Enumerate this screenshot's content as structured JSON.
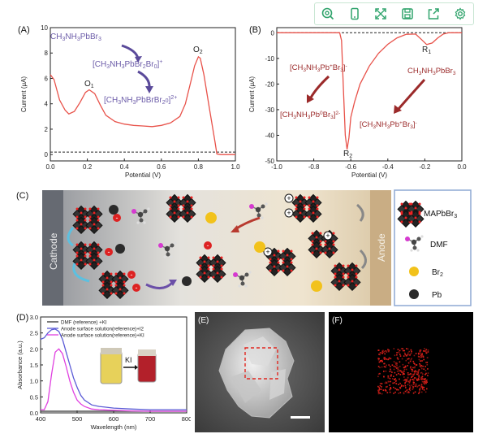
{
  "toolbar": {
    "icons": [
      "search-zoom-icon",
      "phone-icon",
      "expand-icon",
      "save-icon",
      "share-icon",
      "gear-icon"
    ],
    "accent": "#2fa36b"
  },
  "panels": {
    "a_label": "(A)",
    "b_label": "(B)",
    "c_label": "(C)",
    "d_label": "(D)",
    "e_label": "(E)",
    "f_label": "(F)"
  },
  "panelA": {
    "annot1": "CH3NH3PbBr3",
    "annot2": "[CH3NH3PbBr2Br0]+",
    "annot3": "[CH3NH3PbBrBr20]2+",
    "peak1": "O1",
    "peak2": "O2"
  },
  "panelB": {
    "annot1": "[CH3NH3Pb+Br3]-",
    "annot2": "[CH3NH3Pb0Br3]2-",
    "annot3": "CH3NH3PbBr3",
    "annot4": "[CH3NH3Pb+Br3]-",
    "peak1": "R1",
    "peak2": "R2"
  },
  "panelC": {
    "cathode": "Cathode",
    "anode": "Anode",
    "legend": [
      "MAPbBr3",
      "DMF",
      "Br2",
      "Pb"
    ]
  },
  "panelD": {
    "legend": [
      "DMF (reference) +KI",
      "Anode surface solution(reference)+I2",
      "Anode surface solution(reference)+KI"
    ],
    "inset_label": "KI"
  },
  "chart_data": [
    {
      "type": "line",
      "panel": "A",
      "xlabel": "Potential (V)",
      "ylabel": "Current (μA)",
      "xlim": [
        0.0,
        1.0
      ],
      "ylim": [
        -0.5,
        10
      ],
      "xticks": [
        "0.0",
        "0.2",
        "0.4",
        "0.6",
        "0.8",
        "1.0"
      ],
      "yticks": [
        "0",
        "2",
        "4",
        "6",
        "8",
        "10"
      ],
      "series": [
        {
          "color": "#e8524a",
          "x": [
            0.0,
            0.02,
            0.05,
            0.08,
            0.1,
            0.13,
            0.16,
            0.19,
            0.21,
            0.24,
            0.27,
            0.3,
            0.35,
            0.4,
            0.45,
            0.5,
            0.55,
            0.6,
            0.65,
            0.7,
            0.73,
            0.76,
            0.78,
            0.8,
            0.81,
            0.83,
            0.86,
            0.89,
            0.9,
            0.92,
            0.95,
            1.0
          ],
          "y": [
            6.3,
            5.9,
            4.3,
            3.5,
            3.2,
            3.4,
            4.1,
            4.9,
            5.1,
            4.8,
            3.9,
            3.1,
            2.6,
            2.4,
            2.3,
            2.25,
            2.2,
            2.3,
            2.5,
            3.0,
            4.0,
            5.8,
            7.0,
            7.7,
            7.6,
            6.3,
            3.6,
            1.0,
            0.05,
            0.0,
            0.0,
            0.0
          ]
        }
      ],
      "baseline": 0.2
    },
    {
      "type": "line",
      "panel": "B",
      "xlabel": "Potential (V)",
      "ylabel": "Current (μA)",
      "xlim": [
        -1.0,
        0.0
      ],
      "ylim": [
        -50,
        2
      ],
      "xticks": [
        "-1.0",
        "-0.8",
        "-0.6",
        "-0.4",
        "-0.2",
        "0.0"
      ],
      "yticks": [
        "0",
        "-10",
        "-20",
        "-30",
        "-40",
        "-50"
      ],
      "series": [
        {
          "color": "#e8524a",
          "x": [
            -1.0,
            -0.9,
            -0.8,
            -0.7,
            -0.66,
            -0.65,
            -0.64,
            -0.63,
            -0.62,
            -0.61,
            -0.6,
            -0.58,
            -0.55,
            -0.5,
            -0.45,
            -0.4,
            -0.35,
            -0.3,
            -0.25,
            -0.22,
            -0.19,
            -0.16,
            -0.13,
            -0.1,
            -0.07,
            -0.04,
            -0.02,
            0.0
          ],
          "y": [
            0.0,
            0.0,
            0.0,
            0.0,
            0.0,
            -3.0,
            -22.0,
            -40.0,
            -45.5,
            -41.0,
            -33.0,
            -27.0,
            -20.0,
            -13.0,
            -8.0,
            -4.5,
            -2.0,
            -0.6,
            -0.5,
            -2.5,
            -4.6,
            -4.0,
            -2.0,
            -0.5,
            0.0,
            0.0,
            0.0,
            0.0
          ]
        }
      ],
      "baseline": 0.0
    },
    {
      "type": "line",
      "panel": "D",
      "xlabel": "Wavelength (nm)",
      "ylabel": "Absorbance (a.u.)",
      "xlim": [
        400,
        800
      ],
      "ylim": [
        0,
        3.0
      ],
      "xticks": [
        "400",
        "500",
        "600",
        "700",
        "800"
      ],
      "yticks": [
        "0.0",
        "0.5",
        "1.0",
        "1.5",
        "2.0",
        "2.5",
        "3.0"
      ],
      "series": [
        {
          "name": "DMF (reference) +KI",
          "color": "#333333",
          "x": [
            400,
            410,
            420,
            430,
            440,
            450,
            460,
            470,
            480,
            490,
            500,
            520,
            540,
            560,
            600,
            650,
            700,
            750,
            800
          ],
          "y": [
            0.05,
            0.05,
            0.05,
            0.05,
            0.05,
            0.05,
            0.05,
            0.05,
            0.05,
            0.05,
            0.05,
            0.05,
            0.05,
            0.05,
            0.05,
            0.05,
            0.05,
            0.05,
            0.05
          ]
        },
        {
          "name": "Anode surface solution(reference)+I2",
          "color": "#5b5bd6",
          "x": [
            400,
            410,
            420,
            430,
            440,
            450,
            460,
            470,
            480,
            490,
            500,
            510,
            520,
            540,
            560,
            600,
            650,
            700,
            750,
            800
          ],
          "y": [
            2.3,
            2.35,
            2.5,
            2.6,
            2.62,
            2.55,
            2.3,
            1.9,
            1.5,
            1.1,
            0.8,
            0.55,
            0.4,
            0.25,
            0.2,
            0.15,
            0.12,
            0.1,
            0.1,
            0.1
          ]
        },
        {
          "name": "Anode surface solution(reference)+KI",
          "color": "#e040e0",
          "x": [
            400,
            410,
            420,
            430,
            440,
            450,
            460,
            470,
            480,
            490,
            500,
            510,
            520,
            540,
            560,
            600,
            650,
            700,
            750,
            800
          ],
          "y": [
            0.1,
            0.1,
            0.35,
            1.2,
            1.9,
            2.0,
            1.85,
            1.45,
            1.0,
            0.65,
            0.4,
            0.28,
            0.2,
            0.12,
            0.1,
            0.08,
            0.06,
            0.05,
            0.05,
            0.05
          ]
        }
      ]
    }
  ]
}
